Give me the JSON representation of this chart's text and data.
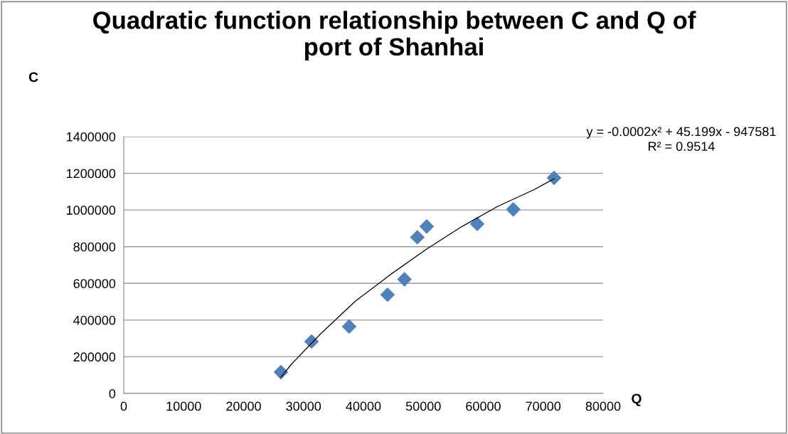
{
  "chart_data": {
    "type": "scatter",
    "title": "Quadratic function relationship between C and Q of\nport of Shanhai",
    "xlabel": "Q",
    "ylabel": "C",
    "series": [
      {
        "color": "#4f81bd",
        "marker": "diamond",
        "x": [
          26230,
          31340,
          37620,
          44030,
          46850,
          49000,
          50560,
          58990,
          65010,
          71810
        ],
        "values": [
          116000,
          283000,
          365000,
          538000,
          622000,
          851000,
          910000,
          924000,
          1003000,
          1175000
        ]
      },
      {
        "type": "line",
        "color": "#000000",
        "marker": "none",
        "x": [
          26230,
          28000,
          32760,
          38690,
          44630,
          50560,
          56500,
          62430,
          68370,
          71810
        ],
        "values": [
          89000,
          160000,
          322000,
          504000,
          651000,
          787000,
          911000,
          1020000,
          1109000,
          1170000
        ]
      }
    ],
    "annotations": [
      "y = -0.0002x² + 45.199x - 947581\nR² = 0.9514"
    ],
    "xlim": [
      0,
      80000
    ],
    "xticks": [
      0,
      10000,
      20000,
      30000,
      40000,
      50000,
      60000,
      70000,
      80000
    ],
    "ylim": [
      0,
      1400000
    ],
    "yticks": [
      0,
      200000,
      400000,
      600000,
      800000,
      1000000,
      1200000,
      1400000
    ],
    "grid": "y",
    "legend": false
  }
}
